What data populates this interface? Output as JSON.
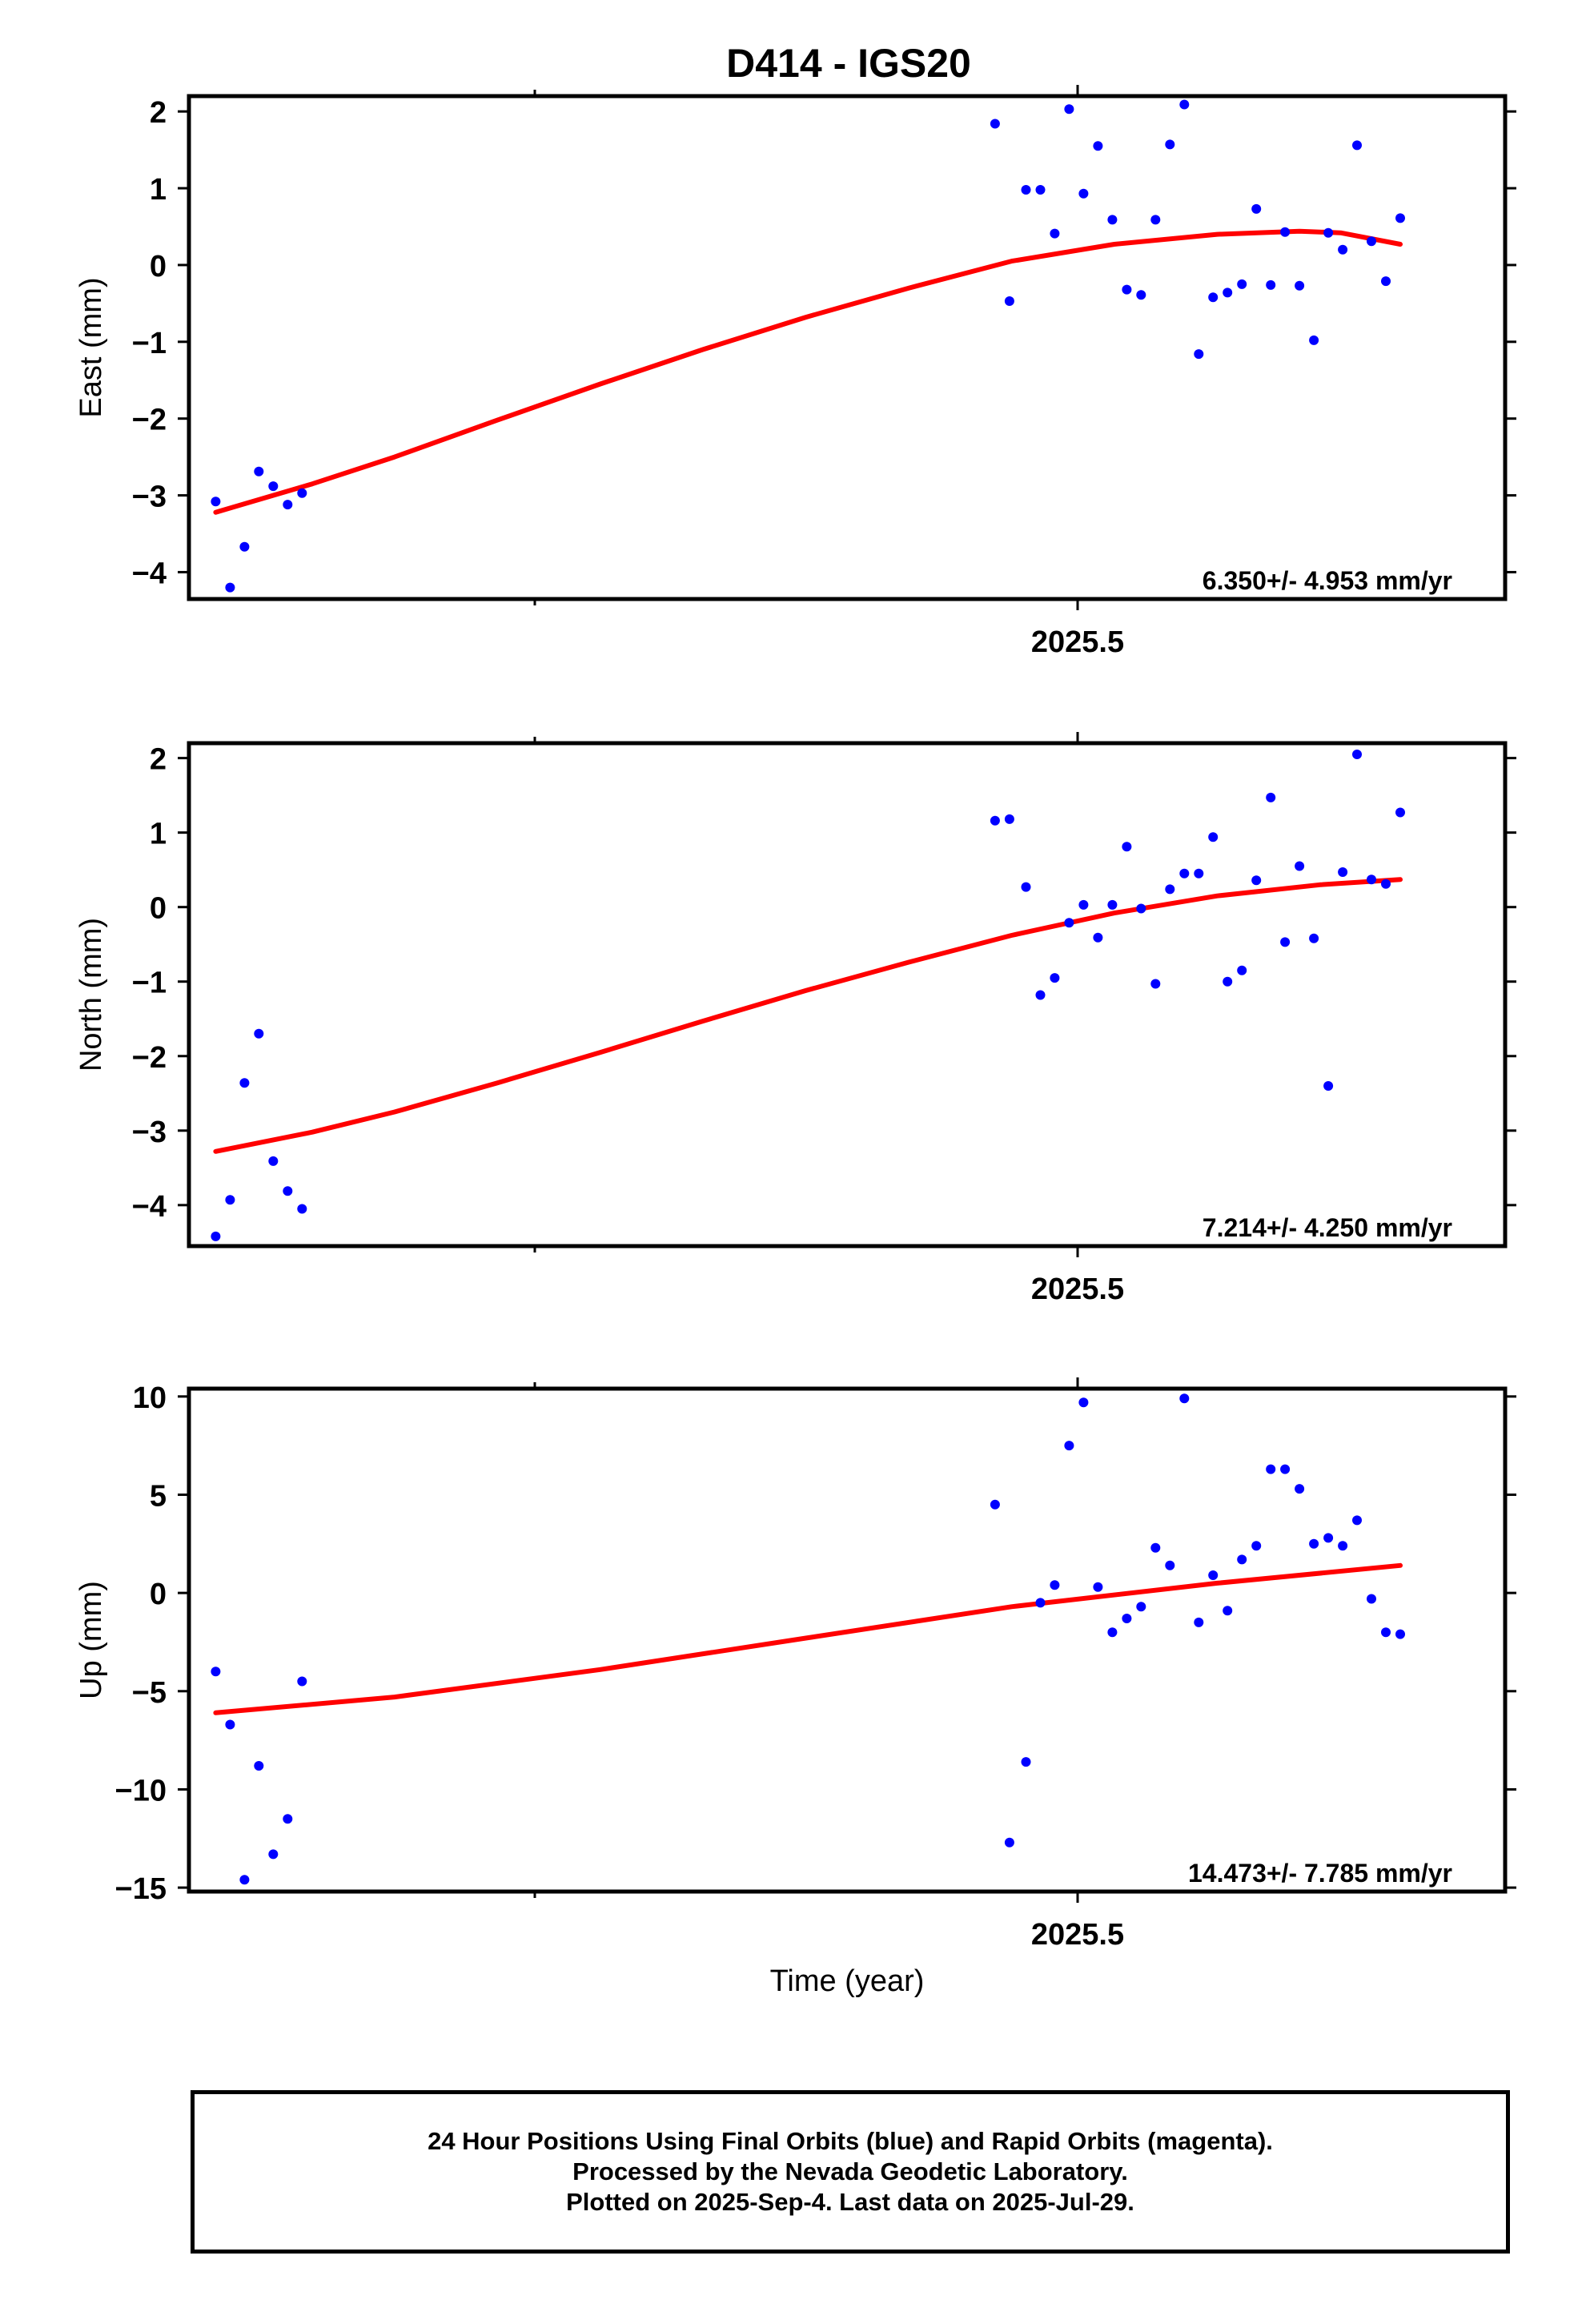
{
  "title": "D414 - IGS20",
  "colors": {
    "points": "#0000ff",
    "fit": "#ff0000",
    "axes": "#000000"
  },
  "xlabel": "Time (year)",
  "x_tick_label": "2025.5",
  "chart_data": [
    {
      "type": "scatter",
      "panel": "east",
      "ylabel": "East (mm)",
      "ylim": [
        -4.35,
        2.2
      ],
      "yticks": [
        2,
        1,
        0,
        -1,
        -2,
        -3,
        -4
      ],
      "ytick_labels": [
        "2",
        "1",
        "0",
        "−1",
        "−2",
        "−3",
        "−4"
      ],
      "xlim": [
        2025.1,
        2025.74
      ],
      "annotation": "6.350+/- 4.953 mm/yr",
      "series": [
        {
          "points": [
            [
              2025.113,
              -3.08
            ],
            [
              2025.12,
              -4.2
            ],
            [
              2025.127,
              -3.67
            ],
            [
              2025.134,
              -2.69
            ],
            [
              2025.141,
              -2.88
            ],
            [
              2025.148,
              -3.12
            ],
            [
              2025.155,
              -2.97
            ],
            [
              2025.492,
              1.84
            ],
            [
              2025.499,
              -0.47
            ],
            [
              2025.507,
              0.98
            ],
            [
              2025.514,
              0.98
            ],
            [
              2025.521,
              0.41
            ],
            [
              2025.528,
              2.03
            ],
            [
              2025.535,
              0.93
            ],
            [
              2025.542,
              1.55
            ],
            [
              2025.549,
              0.59
            ],
            [
              2025.556,
              -0.32
            ],
            [
              2025.563,
              -0.39
            ],
            [
              2025.57,
              0.59
            ],
            [
              2025.577,
              1.57
            ],
            [
              2025.584,
              2.09
            ],
            [
              2025.591,
              -1.16
            ],
            [
              2025.598,
              -0.42
            ],
            [
              2025.605,
              -0.36
            ],
            [
              2025.612,
              -0.25
            ],
            [
              2025.619,
              0.73
            ],
            [
              2025.626,
              -0.26
            ],
            [
              2025.633,
              0.43
            ],
            [
              2025.64,
              -0.27
            ],
            [
              2025.647,
              -0.98
            ],
            [
              2025.654,
              0.42
            ],
            [
              2025.661,
              0.2
            ],
            [
              2025.668,
              1.56
            ],
            [
              2025.675,
              0.31
            ],
            [
              2025.682,
              -0.21
            ],
            [
              2025.689,
              0.61
            ]
          ]
        }
      ],
      "fit": [
        [
          2025.113,
          -3.22
        ],
        [
          2025.16,
          -2.85
        ],
        [
          2025.2,
          -2.5
        ],
        [
          2025.25,
          -2.02
        ],
        [
          2025.3,
          -1.55
        ],
        [
          2025.35,
          -1.1
        ],
        [
          2025.4,
          -0.68
        ],
        [
          2025.45,
          -0.3
        ],
        [
          2025.5,
          0.05
        ],
        [
          2025.55,
          0.27
        ],
        [
          2025.6,
          0.4
        ],
        [
          2025.64,
          0.44
        ],
        [
          2025.66,
          0.42
        ],
        [
          2025.689,
          0.27
        ]
      ]
    },
    {
      "type": "scatter",
      "panel": "north",
      "ylabel": "North (mm)",
      "ylim": [
        -4.55,
        2.2
      ],
      "yticks": [
        2,
        1,
        0,
        -1,
        -2,
        -3,
        -4
      ],
      "ytick_labels": [
        "2",
        "1",
        "0",
        "−1",
        "−2",
        "−3",
        "−4"
      ],
      "xlim": [
        2025.1,
        2025.74
      ],
      "annotation": "7.214+/- 4.250 mm/yr",
      "series": [
        {
          "points": [
            [
              2025.113,
              -4.42
            ],
            [
              2025.12,
              -3.93
            ],
            [
              2025.127,
              -2.36
            ],
            [
              2025.134,
              -1.7
            ],
            [
              2025.141,
              -3.41
            ],
            [
              2025.148,
              -3.81
            ],
            [
              2025.155,
              -4.05
            ],
            [
              2025.492,
              1.16
            ],
            [
              2025.499,
              1.18
            ],
            [
              2025.507,
              0.27
            ],
            [
              2025.514,
              -1.18
            ],
            [
              2025.521,
              -0.95
            ],
            [
              2025.528,
              -0.21
            ],
            [
              2025.535,
              0.03
            ],
            [
              2025.542,
              -0.41
            ],
            [
              2025.549,
              0.03
            ],
            [
              2025.556,
              0.81
            ],
            [
              2025.563,
              -0.02
            ],
            [
              2025.57,
              -1.03
            ],
            [
              2025.577,
              0.24
            ],
            [
              2025.584,
              0.45
            ],
            [
              2025.591,
              0.45
            ],
            [
              2025.598,
              0.94
            ],
            [
              2025.605,
              -1.0
            ],
            [
              2025.612,
              -0.85
            ],
            [
              2025.619,
              0.36
            ],
            [
              2025.626,
              1.47
            ],
            [
              2025.633,
              -0.47
            ],
            [
              2025.64,
              0.55
            ],
            [
              2025.647,
              -0.42
            ],
            [
              2025.654,
              -2.4
            ],
            [
              2025.661,
              0.47
            ],
            [
              2025.668,
              2.05
            ],
            [
              2025.675,
              0.37
            ],
            [
              2025.682,
              0.31
            ],
            [
              2025.689,
              1.27
            ]
          ]
        }
      ],
      "fit": [
        [
          2025.113,
          -3.28
        ],
        [
          2025.16,
          -3.02
        ],
        [
          2025.2,
          -2.75
        ],
        [
          2025.25,
          -2.36
        ],
        [
          2025.3,
          -1.95
        ],
        [
          2025.35,
          -1.53
        ],
        [
          2025.4,
          -1.12
        ],
        [
          2025.45,
          -0.74
        ],
        [
          2025.5,
          -0.38
        ],
        [
          2025.55,
          -0.08
        ],
        [
          2025.6,
          0.15
        ],
        [
          2025.65,
          0.3
        ],
        [
          2025.689,
          0.37
        ]
      ]
    },
    {
      "type": "scatter",
      "panel": "up",
      "ylabel": "Up (mm)",
      "ylim": [
        -15.2,
        10.4
      ],
      "yticks": [
        10,
        5,
        0,
        -5,
        -10,
        -15
      ],
      "ytick_labels": [
        "10",
        "5",
        "0",
        "−5",
        "−10",
        "−15"
      ],
      "xlim": [
        2025.1,
        2025.74
      ],
      "annotation": "14.473+/- 7.785 mm/yr",
      "series": [
        {
          "points": [
            [
              2025.113,
              -4.0
            ],
            [
              2025.12,
              -6.7
            ],
            [
              2025.127,
              -14.6
            ],
            [
              2025.134,
              -8.8
            ],
            [
              2025.141,
              -13.3
            ],
            [
              2025.148,
              -11.5
            ],
            [
              2025.155,
              -4.5
            ],
            [
              2025.492,
              4.5
            ],
            [
              2025.499,
              -12.7
            ],
            [
              2025.507,
              -8.6
            ],
            [
              2025.514,
              -0.5
            ],
            [
              2025.521,
              0.4
            ],
            [
              2025.528,
              7.5
            ],
            [
              2025.535,
              9.7
            ],
            [
              2025.542,
              0.3
            ],
            [
              2025.549,
              -2.0
            ],
            [
              2025.556,
              -1.3
            ],
            [
              2025.563,
              -0.7
            ],
            [
              2025.57,
              2.3
            ],
            [
              2025.577,
              1.4
            ],
            [
              2025.584,
              9.9
            ],
            [
              2025.591,
              -1.5
            ],
            [
              2025.598,
              0.9
            ],
            [
              2025.605,
              -0.9
            ],
            [
              2025.612,
              1.7
            ],
            [
              2025.619,
              2.4
            ],
            [
              2025.626,
              6.3
            ],
            [
              2025.633,
              6.3
            ],
            [
              2025.64,
              5.3
            ],
            [
              2025.647,
              2.5
            ],
            [
              2025.654,
              2.8
            ],
            [
              2025.661,
              2.4
            ],
            [
              2025.668,
              3.7
            ],
            [
              2025.675,
              -0.3
            ],
            [
              2025.682,
              -2.0
            ],
            [
              2025.689,
              -2.1
            ]
          ]
        }
      ],
      "fit": [
        [
          2025.113,
          -6.1
        ],
        [
          2025.2,
          -5.3
        ],
        [
          2025.3,
          -3.9
        ],
        [
          2025.4,
          -2.3
        ],
        [
          2025.5,
          -0.7
        ],
        [
          2025.6,
          0.5
        ],
        [
          2025.689,
          1.4
        ]
      ]
    }
  ],
  "footer": {
    "line1": "24 Hour Positions Using Final Orbits (blue) and Rapid Orbits (magenta).",
    "line2": "Processed by the Nevada Geodetic Laboratory.",
    "line3": "Plotted on 2025-Sep-4. Last data on 2025-Jul-29."
  }
}
